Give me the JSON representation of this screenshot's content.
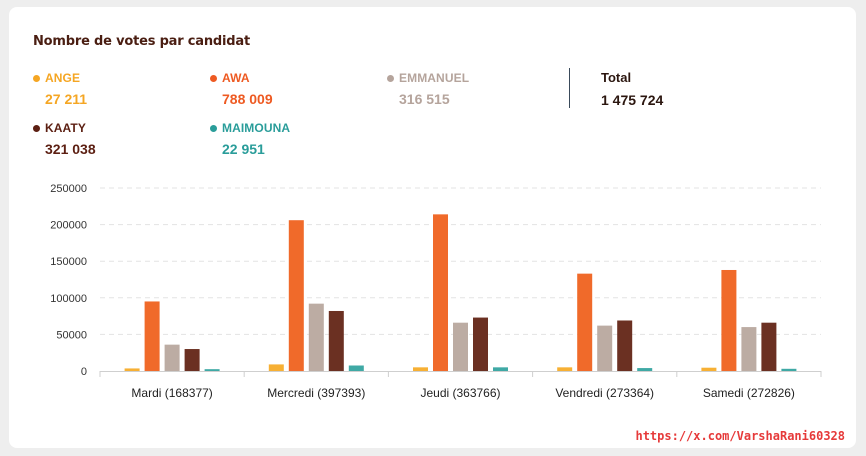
{
  "credit": "https://x.com/VarshaRani60328",
  "summary": {
    "total_label": "Total",
    "total_value": "1 475 724"
  },
  "legend": [
    {
      "name": "ANGE",
      "value": "27 211",
      "color": "#f5a623"
    },
    {
      "name": "AWA",
      "value": "788 009",
      "color": "#ee5a22"
    },
    {
      "name": "EMMANUEL",
      "value": "316 515",
      "color": "#b5a49c"
    },
    {
      "name": "KAATY",
      "value": "321 038",
      "color": "#5c1f12"
    },
    {
      "name": "MAIMOUNA",
      "value": "22 951",
      "color": "#2a9d9a"
    }
  ],
  "chart_data": {
    "type": "bar",
    "title": "Nombre de votes par candidat",
    "xlabel": "",
    "ylabel": "",
    "ylim": [
      0,
      250000
    ],
    "yticks": [
      "250000",
      "200000",
      "150000",
      "100000",
      "50000",
      "0"
    ],
    "grid": true,
    "categories": [
      "Mardi (168377)",
      "Mercredi (397393)",
      "Jeudi (363766)",
      "Vendredi (273364)",
      "Samedi (272826)"
    ],
    "series": [
      {
        "name": "ANGE",
        "color": "#f7b034",
        "values": [
          3500,
          9000,
          5000,
          5000,
          4500
        ]
      },
      {
        "name": "AWA",
        "color": "#f06a2a",
        "values": [
          95000,
          206000,
          214000,
          133000,
          138000
        ]
      },
      {
        "name": "EMMANUEL",
        "color": "#bcaca3",
        "values": [
          36000,
          92000,
          66000,
          62000,
          60000
        ]
      },
      {
        "name": "KAATY",
        "color": "#6b3022",
        "values": [
          30000,
          82000,
          73000,
          69000,
          66000
        ]
      },
      {
        "name": "MAIMOUNA",
        "color": "#3fa9a5",
        "values": [
          2500,
          7500,
          5000,
          4000,
          3000
        ]
      }
    ]
  }
}
